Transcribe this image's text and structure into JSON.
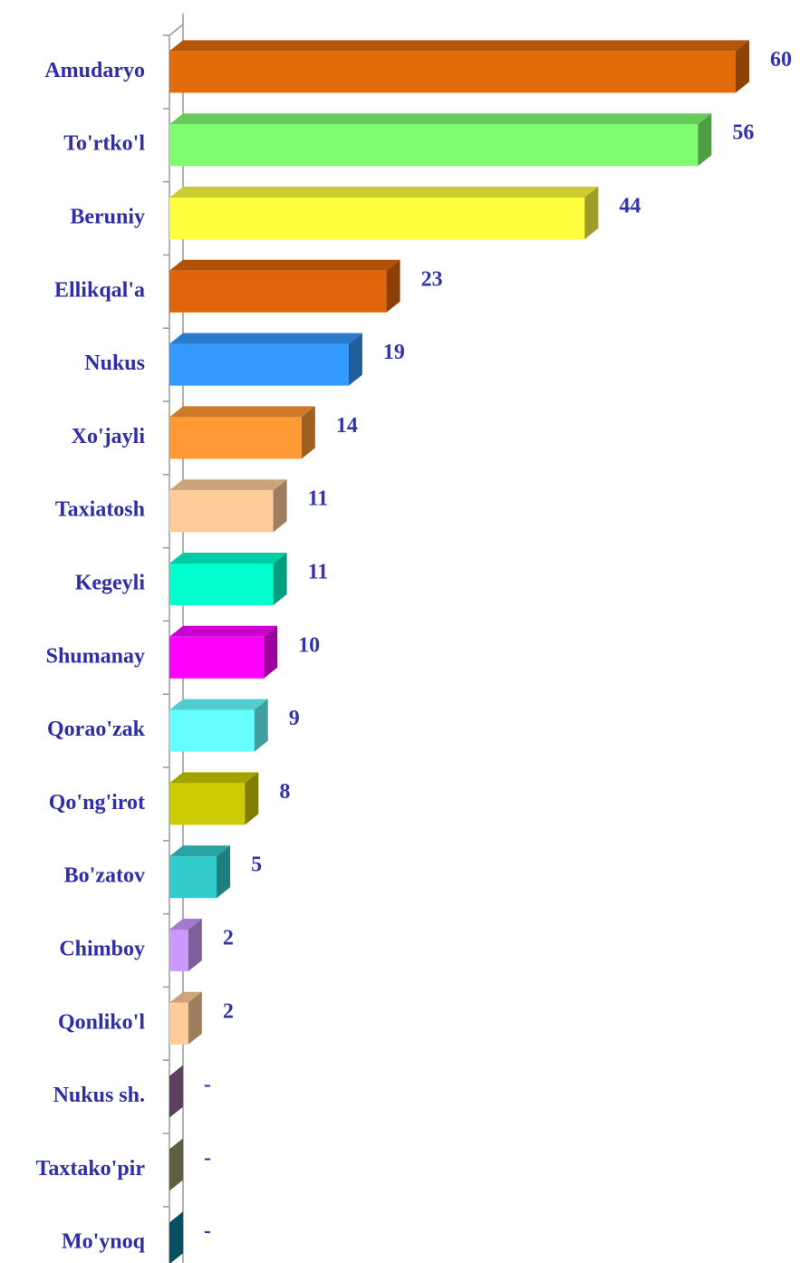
{
  "chart_data": {
    "type": "bar",
    "orientation": "horizontal",
    "three_d": true,
    "categories": [
      "Amudaryo",
      "To'rtko'l",
      "Beruniy",
      "Ellikqal'a",
      "Nukus",
      "Xo'jayli",
      "Taxiatosh",
      "Kegeyli",
      "Shumanay",
      "Qorao'zak",
      "Qo'ng'irot",
      "Bo'zatov",
      "Chimboy",
      "Qonliko'l",
      "Nukus sh.",
      "Taxtako'pir",
      "Mo'ynoq"
    ],
    "values": [
      60,
      56,
      44,
      23,
      19,
      14,
      11,
      11,
      10,
      9,
      8,
      5,
      2,
      2,
      0,
      0,
      0
    ],
    "value_labels": [
      "60",
      "56",
      "44",
      "23",
      "19",
      "14",
      "11",
      "11",
      "10",
      "9",
      "8",
      "5",
      "2",
      "2",
      "-",
      "-",
      "-"
    ],
    "colors": [
      "#e36c0a",
      "#7fff6f",
      "#ffff40",
      "#e0640a",
      "#3399ff",
      "#ff9933",
      "#ffcc99",
      "#00ffcc",
      "#ff00ff",
      "#66ffff",
      "#cccc00",
      "#33cccc",
      "#cc99ff",
      "#ffcc99",
      "#996699",
      "#999966",
      "#0b7f9f"
    ]
  }
}
